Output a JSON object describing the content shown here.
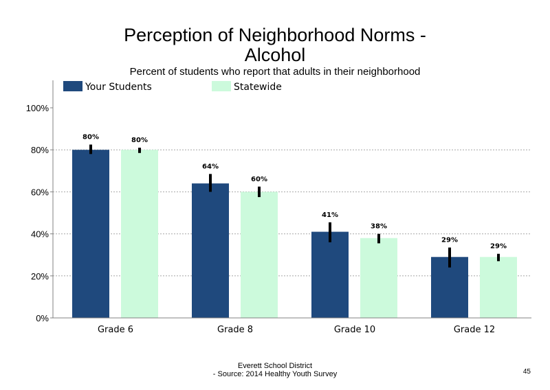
{
  "page": {
    "title_line1": "Perception of Neighborhood Norms -",
    "title_line2": "Alcohol",
    "subtitle": "Percent of students who report that adults in their neighborhood",
    "footer_line1": "Everett School District",
    "footer_line2": "- Source: 2014 Healthy  Youth Survey",
    "page_number": "45"
  },
  "chart_data": {
    "type": "bar",
    "categories": [
      "Grade 6",
      "Grade 8",
      "Grade 10",
      "Grade 12"
    ],
    "series": [
      {
        "name": "Your Students",
        "color": "#1f497d",
        "values": [
          80,
          64,
          41,
          29
        ],
        "labels": [
          "80%",
          "64%",
          "41%",
          "29%"
        ],
        "error_low": [
          78,
          60,
          36,
          24
        ],
        "error_high": [
          82.5,
          68.5,
          45.5,
          33.5
        ]
      },
      {
        "name": "Statewide",
        "color": "#ccfadc",
        "values": [
          80,
          60,
          38,
          29
        ],
        "labels": [
          "80%",
          "60%",
          "38%",
          "29%"
        ],
        "error_low": [
          78.5,
          57.5,
          35.5,
          27
        ],
        "error_high": [
          81,
          62.5,
          40,
          30.5
        ]
      }
    ],
    "yticks": [
      "0%",
      "20%",
      "40%",
      "60%",
      "80%",
      "100%"
    ],
    "ylim": [
      0,
      100
    ],
    "grid": true,
    "legend_position": "top-left"
  }
}
